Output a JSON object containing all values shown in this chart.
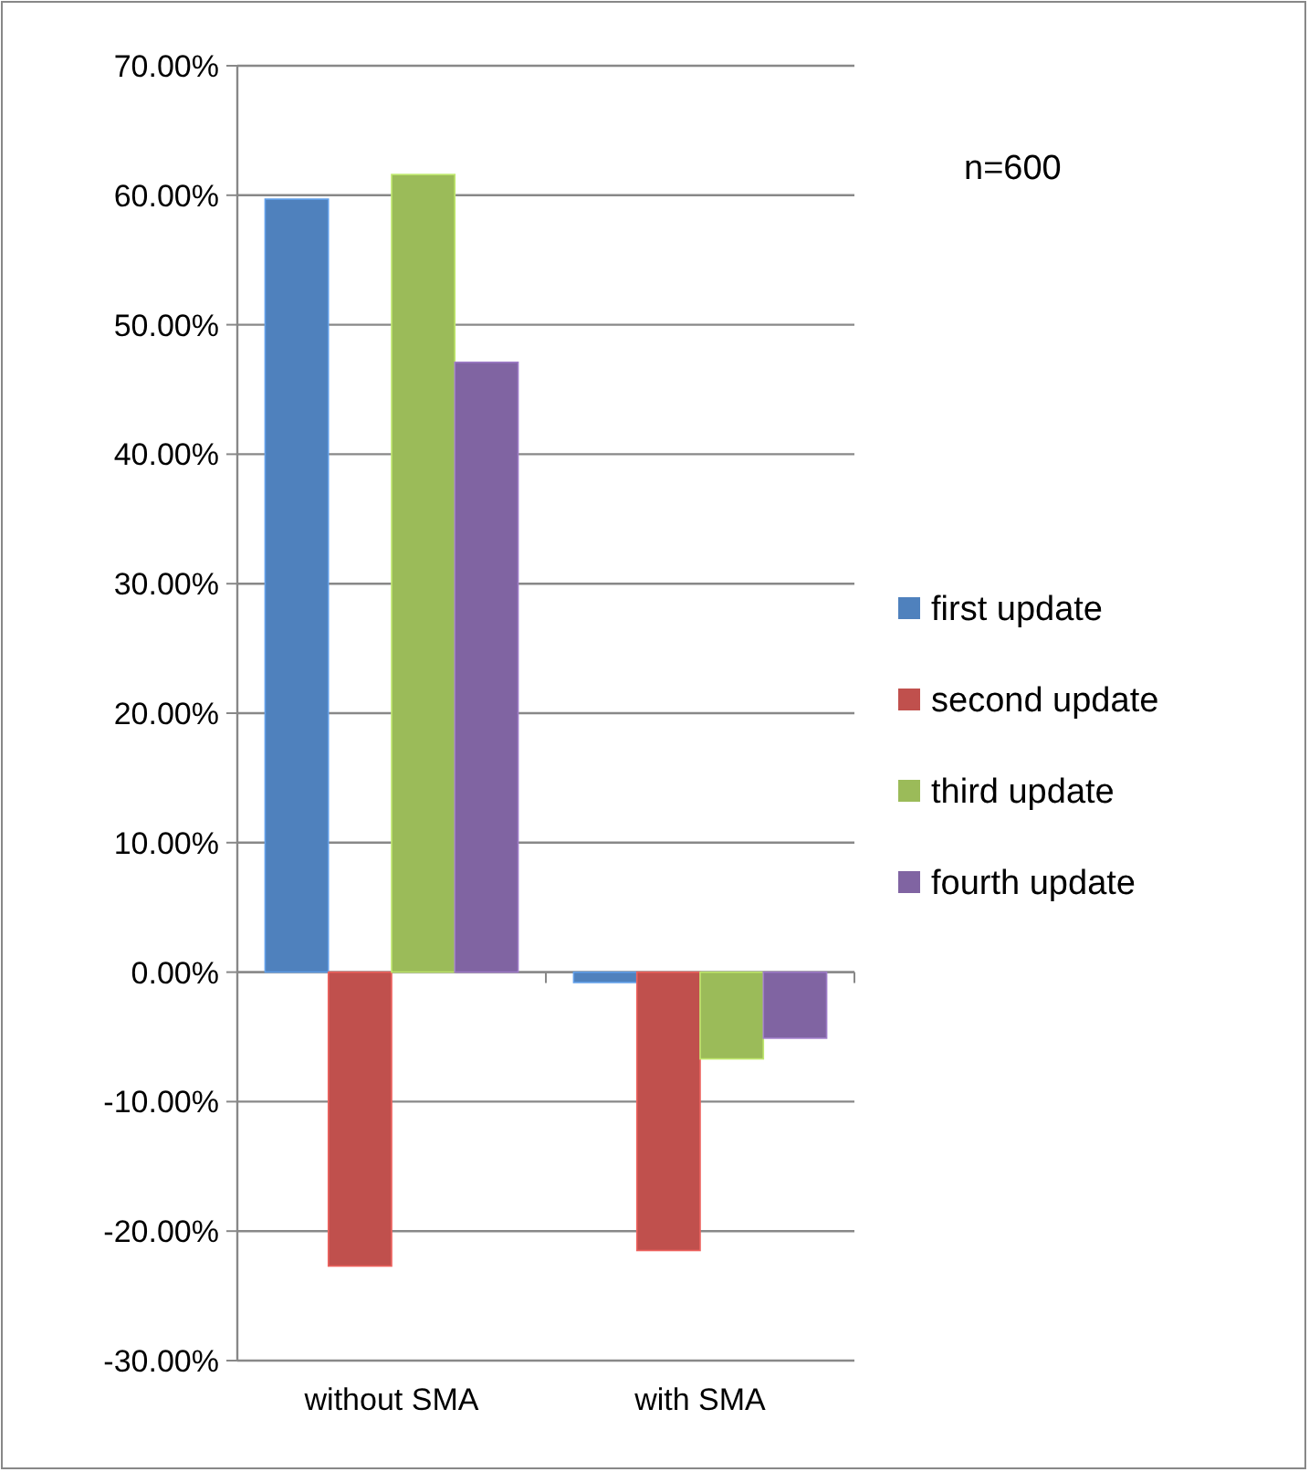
{
  "chart_data": {
    "type": "bar",
    "categories": [
      "without SMA",
      "with SMA"
    ],
    "series": [
      {
        "name": "first update",
        "color": "#4f81bd",
        "values": [
          59.7,
          -0.8
        ]
      },
      {
        "name": "second update",
        "color": "#c0504d",
        "values": [
          -22.7,
          -21.5
        ]
      },
      {
        "name": "third update",
        "color": "#9bbb59",
        "values": [
          61.6,
          -6.7
        ]
      },
      {
        "name": "fourth update",
        "color": "#8064a2",
        "values": [
          47.1,
          -5.1
        ]
      }
    ],
    "ylim": [
      -30,
      70
    ],
    "yticks": [
      {
        "value": -30,
        "label": "-30.00%"
      },
      {
        "value": -20,
        "label": "-20.00%"
      },
      {
        "value": -10,
        "label": "-10.00%"
      },
      {
        "value": 0,
        "label": "0.00%"
      },
      {
        "value": 10,
        "label": "10.00%"
      },
      {
        "value": 20,
        "label": "20.00%"
      },
      {
        "value": 30,
        "label": "30.00%"
      },
      {
        "value": 40,
        "label": "40.00%"
      },
      {
        "value": 50,
        "label": "50.00%"
      },
      {
        "value": 60,
        "label": "60.00%"
      },
      {
        "value": 70,
        "label": "70.00%"
      }
    ],
    "grid": "y",
    "legend": "right",
    "annotations": [
      "n=600"
    ]
  }
}
